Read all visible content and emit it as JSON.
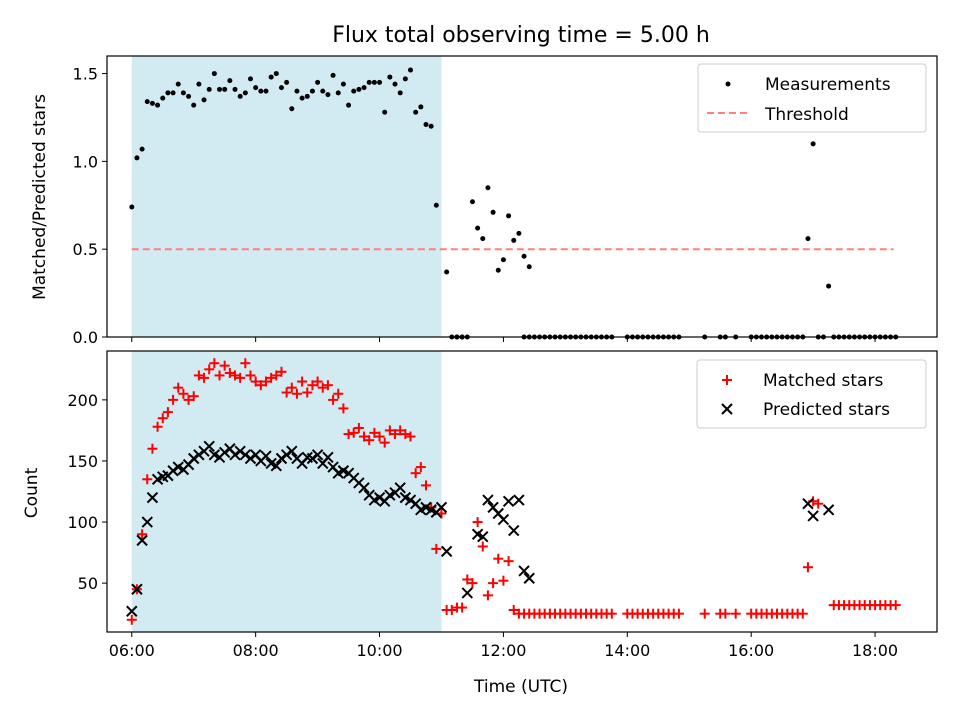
{
  "title": "Flux total observing time = 5.00 h",
  "colors": {
    "shade": "#add8e6",
    "measurement": "#000000",
    "threshold": "#ff7f7f",
    "matched": "#ff0000",
    "predicted": "#000000"
  },
  "chart_data": [
    {
      "type": "scatter",
      "panel": "top",
      "ylabel": "Matched/Predicted stars",
      "xlabel": "",
      "ylim": [
        0,
        1.6
      ],
      "yticks": [
        "0.0",
        "0.5",
        "1.0",
        "1.5"
      ],
      "xlim": [
        5.6,
        19.0
      ],
      "shaded_region": [
        6.0,
        11.0
      ],
      "legend_position": "upper right",
      "legend": [
        "Measurements",
        "Threshold"
      ],
      "threshold": {
        "name": "Threshold",
        "y": 0.5,
        "x_range": [
          6.0,
          18.3
        ]
      },
      "series": [
        {
          "name": "Measurements",
          "x": [
            "06:00",
            "06:05",
            "06:10",
            "06:15",
            "06:20",
            "06:25",
            "06:30",
            "06:35",
            "06:40",
            "06:45",
            "06:50",
            "06:55",
            "07:00",
            "07:05",
            "07:10",
            "07:15",
            "07:20",
            "07:25",
            "07:30",
            "07:35",
            "07:40",
            "07:45",
            "07:50",
            "07:55",
            "08:00",
            "08:05",
            "08:10",
            "08:15",
            "08:20",
            "08:25",
            "08:30",
            "08:35",
            "08:40",
            "08:45",
            "08:50",
            "08:55",
            "09:00",
            "09:05",
            "09:10",
            "09:15",
            "09:20",
            "09:25",
            "09:30",
            "09:35",
            "09:40",
            "09:45",
            "09:50",
            "09:55",
            "10:00",
            "10:05",
            "10:10",
            "10:15",
            "10:20",
            "10:25",
            "10:30",
            "10:35",
            "10:40",
            "10:45",
            "10:50",
            "10:55",
            "11:05",
            "11:10",
            "11:15",
            "11:20",
            "11:30",
            "11:35",
            "11:40",
            "11:45",
            "11:50",
            "11:55",
            "12:00",
            "12:05",
            "12:10",
            "12:15",
            "12:25",
            "12:20",
            "16:55",
            "17:00",
            "17:15"
          ],
          "y": [
            0.74,
            1.02,
            1.07,
            1.34,
            1.33,
            1.32,
            1.36,
            1.39,
            1.39,
            1.44,
            1.39,
            1.37,
            1.32,
            1.44,
            1.35,
            1.41,
            1.5,
            1.41,
            1.41,
            1.46,
            1.41,
            1.37,
            1.39,
            1.47,
            1.42,
            1.4,
            1.4,
            1.48,
            1.5,
            1.42,
            1.45,
            1.3,
            1.4,
            1.36,
            1.37,
            1.4,
            1.45,
            1.4,
            1.38,
            1.49,
            1.39,
            1.44,
            1.32,
            1.4,
            1.41,
            1.42,
            1.45,
            1.45,
            1.45,
            1.28,
            1.48,
            1.44,
            1.39,
            1.47,
            1.52,
            1.28,
            1.31,
            1.21,
            1.2,
            0.75,
            0.37,
            0.0,
            0.0,
            0.0,
            0.77,
            0.62,
            0.56,
            0.85,
            0.71,
            0.38,
            0.44,
            0.69,
            0.55,
            0.59,
            0.4,
            0.46,
            0.56,
            1.1,
            0.29
          ]
        }
      ],
      "zero_points_x": [
        "11:15",
        "11:20",
        "11:25",
        "12:20",
        "12:25",
        "12:30",
        "12:35",
        "12:40",
        "12:45",
        "12:50",
        "12:55",
        "13:00",
        "13:05",
        "13:10",
        "13:15",
        "13:20",
        "13:25",
        "13:30",
        "13:35",
        "13:40",
        "13:45",
        "14:00",
        "14:05",
        "14:10",
        "14:15",
        "14:20",
        "14:25",
        "14:30",
        "14:35",
        "14:40",
        "14:45",
        "14:50",
        "15:15",
        "15:30",
        "15:35",
        "15:45",
        "16:00",
        "16:05",
        "16:10",
        "16:15",
        "16:20",
        "16:25",
        "16:30",
        "16:35",
        "16:40",
        "16:45",
        "16:50",
        "17:05",
        "17:10",
        "17:20",
        "17:25",
        "17:30",
        "17:35",
        "17:40",
        "17:45",
        "17:50",
        "17:55",
        "18:00",
        "18:05",
        "18:10",
        "18:15",
        "18:20"
      ]
    },
    {
      "type": "scatter",
      "panel": "bottom",
      "ylabel": "Count",
      "xlabel": "Time (UTC)",
      "ylim": [
        10,
        240
      ],
      "yticks": [
        "50",
        "100",
        "150",
        "200"
      ],
      "xlim": [
        5.6,
        19.0
      ],
      "xticks": [
        "06:00",
        "08:00",
        "10:00",
        "12:00",
        "14:00",
        "16:00",
        "18:00"
      ],
      "shaded_region": [
        6.0,
        11.0
      ],
      "legend_position": "upper right",
      "legend": [
        "Matched stars",
        "Predicted stars"
      ],
      "series": [
        {
          "name": "Matched stars",
          "x": [
            "06:00",
            "06:05",
            "06:10",
            "06:15",
            "06:20",
            "06:25",
            "06:30",
            "06:35",
            "06:40",
            "06:45",
            "06:50",
            "06:55",
            "07:00",
            "07:05",
            "07:10",
            "07:15",
            "07:20",
            "07:25",
            "07:30",
            "07:35",
            "07:40",
            "07:45",
            "07:50",
            "07:55",
            "08:00",
            "08:05",
            "08:10",
            "08:15",
            "08:20",
            "08:25",
            "08:30",
            "08:35",
            "08:40",
            "08:45",
            "08:50",
            "08:55",
            "09:00",
            "09:05",
            "09:10",
            "09:15",
            "09:20",
            "09:25",
            "09:30",
            "09:35",
            "09:40",
            "09:45",
            "09:50",
            "09:55",
            "10:00",
            "10:05",
            "10:10",
            "10:15",
            "10:20",
            "10:25",
            "10:30",
            "10:35",
            "10:40",
            "10:45",
            "10:50",
            "10:55",
            "11:00",
            "11:05",
            "11:10",
            "11:15",
            "11:20",
            "11:25",
            "11:30",
            "11:35",
            "11:40",
            "11:45",
            "11:50",
            "11:55",
            "12:00",
            "12:05",
            "12:10",
            "12:15",
            "16:55",
            "17:00",
            "17:05"
          ],
          "y": [
            20,
            45,
            90,
            135,
            160,
            178,
            185,
            190,
            200,
            210,
            205,
            200,
            203,
            220,
            218,
            225,
            230,
            220,
            228,
            222,
            220,
            218,
            230,
            220,
            215,
            212,
            215,
            218,
            220,
            223,
            206,
            210,
            205,
            215,
            206,
            212,
            215,
            210,
            212,
            200,
            205,
            193,
            172,
            173,
            177,
            170,
            167,
            173,
            170,
            165,
            175,
            172,
            175,
            172,
            170,
            140,
            145,
            130,
            112,
            78,
            107,
            28,
            28,
            30,
            30,
            53,
            50,
            100,
            80,
            40,
            50,
            70,
            52,
            68,
            28,
            25,
            63,
            117,
            115
          ]
        },
        {
          "name": "Predicted stars",
          "x": [
            "06:00",
            "06:05",
            "06:10",
            "06:15",
            "06:20",
            "06:25",
            "06:30",
            "06:35",
            "06:40",
            "06:45",
            "06:50",
            "06:55",
            "07:00",
            "07:05",
            "07:10",
            "07:15",
            "07:20",
            "07:25",
            "07:30",
            "07:35",
            "07:40",
            "07:45",
            "07:50",
            "07:55",
            "08:00",
            "08:05",
            "08:10",
            "08:15",
            "08:20",
            "08:25",
            "08:30",
            "08:35",
            "08:40",
            "08:45",
            "08:50",
            "08:55",
            "09:00",
            "09:05",
            "09:10",
            "09:15",
            "09:20",
            "09:25",
            "09:30",
            "09:35",
            "09:40",
            "09:45",
            "09:50",
            "09:55",
            "10:00",
            "10:05",
            "10:10",
            "10:15",
            "10:20",
            "10:25",
            "10:30",
            "10:35",
            "10:40",
            "10:45",
            "10:50",
            "10:55",
            "11:00",
            "11:05",
            "11:25",
            "11:35",
            "11:40",
            "11:45",
            "11:50",
            "11:55",
            "12:00",
            "12:05",
            "12:10",
            "12:15",
            "12:20",
            "12:25",
            "16:55",
            "17:00",
            "17:15"
          ],
          "y": [
            27,
            45,
            85,
            100,
            120,
            135,
            137,
            138,
            142,
            145,
            143,
            147,
            152,
            155,
            158,
            162,
            155,
            153,
            157,
            160,
            155,
            158,
            155,
            152,
            155,
            150,
            154,
            148,
            146,
            152,
            155,
            158,
            152,
            148,
            153,
            152,
            155,
            148,
            153,
            145,
            140,
            142,
            140,
            136,
            132,
            128,
            122,
            118,
            120,
            117,
            122,
            124,
            128,
            120,
            118,
            115,
            110,
            112,
            110,
            108,
            112,
            76,
            42,
            90,
            88,
            118,
            112,
            107,
            102,
            117,
            93,
            118,
            60,
            54,
            115,
            105,
            110
          ]
        }
      ]
    }
  ]
}
